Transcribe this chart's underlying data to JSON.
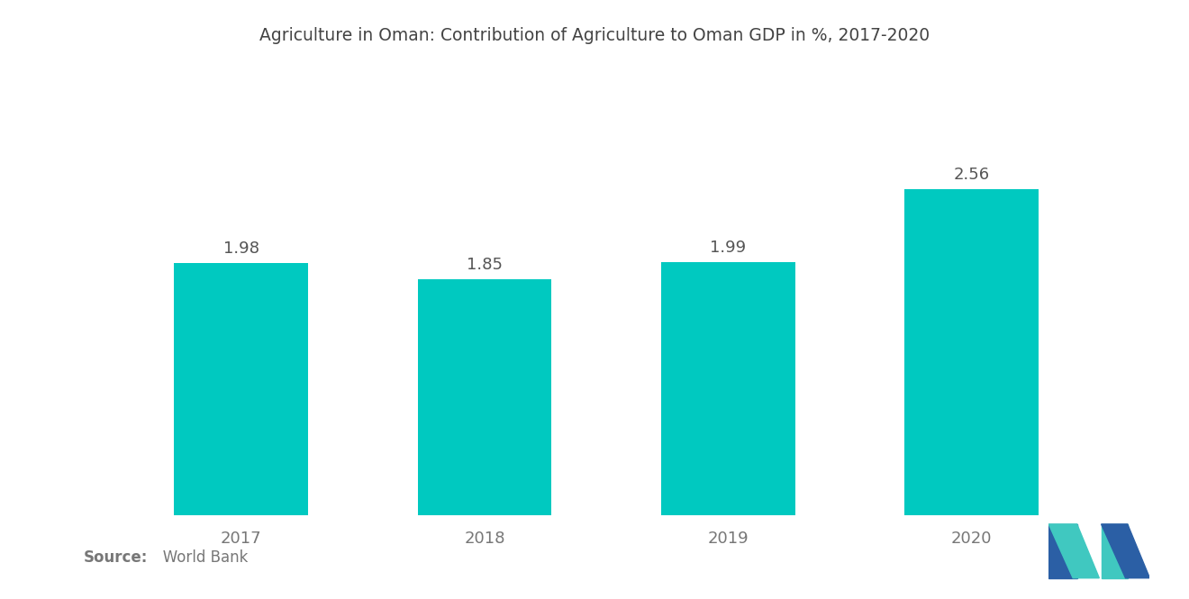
{
  "title": "Agriculture in Oman: Contribution of Agriculture to Oman GDP in %, 2017-2020",
  "categories": [
    "2017",
    "2018",
    "2019",
    "2020"
  ],
  "values": [
    1.98,
    1.85,
    1.99,
    2.56
  ],
  "bar_color": "#00C9C0",
  "background_color": "#ffffff",
  "source_bold": "Source:",
  "source_normal": "   World Bank",
  "title_fontsize": 13.5,
  "label_fontsize": 13,
  "tick_fontsize": 13,
  "source_fontsize": 12,
  "ylim": [
    0,
    3.2
  ],
  "bar_width": 0.55,
  "logo_blue": "#2B5FA5",
  "logo_teal": "#40C8C0"
}
